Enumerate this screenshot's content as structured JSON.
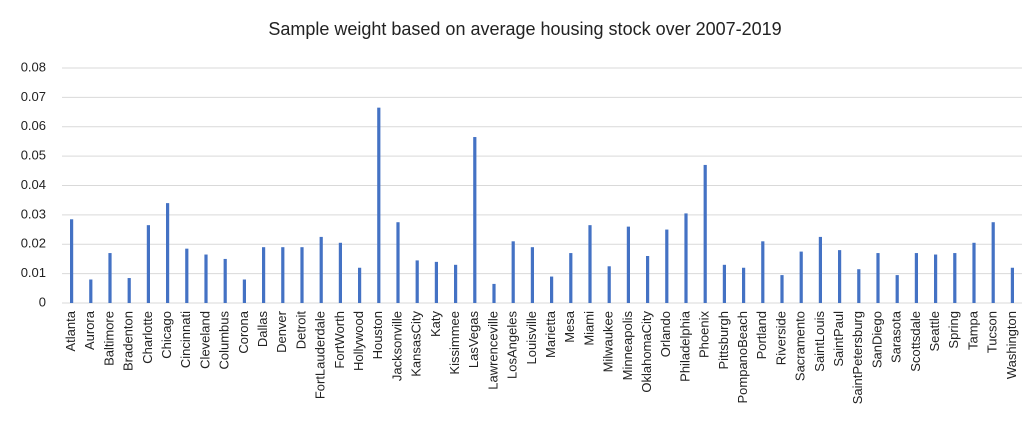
{
  "chart_data": {
    "type": "bar",
    "title": "Sample weight based on average housing stock over 2007-2019",
    "categories": [
      "Atlanta",
      "Aurora",
      "Baltimore",
      "Bradenton",
      "Charlotte",
      "Chicago",
      "Cincinnati",
      "Cleveland",
      "Columbus",
      "Corona",
      "Dallas",
      "Denver",
      "Detroit",
      "FortLauderdale",
      "FortWorth",
      "Hollywood",
      "Houston",
      "Jacksonville",
      "KansasCity",
      "Katy",
      "Kissimmee",
      "LasVegas",
      "Lawrenceville",
      "LosAngeles",
      "Louisville",
      "Marietta",
      "Mesa",
      "Miami",
      "Milwaukee",
      "Minneapolis",
      "OklahomaCity",
      "Orlando",
      "Philadelphia",
      "Phoenix",
      "Pittsburgh",
      "PompanoBeach",
      "Portland",
      "Riverside",
      "Sacramento",
      "SaintLouis",
      "SaintPaul",
      "SaintPetersburg",
      "SanDiego",
      "Sarasota",
      "Scottsdale",
      "Seattle",
      "Spring",
      "Tampa",
      "Tucson",
      "Washington"
    ],
    "values": [
      0.0285,
      0.008,
      0.017,
      0.0085,
      0.0265,
      0.034,
      0.0185,
      0.0165,
      0.015,
      0.008,
      0.019,
      0.019,
      0.019,
      0.0225,
      0.0205,
      0.012,
      0.0665,
      0.0275,
      0.0145,
      0.014,
      0.013,
      0.0565,
      0.0065,
      0.021,
      0.019,
      0.009,
      0.017,
      0.0265,
      0.0125,
      0.026,
      0.016,
      0.025,
      0.0305,
      0.047,
      0.013,
      0.012,
      0.021,
      0.0095,
      0.0175,
      0.0225,
      0.018,
      0.0115,
      0.017,
      0.0095,
      0.017,
      0.0165,
      0.017,
      0.0205,
      0.0275,
      0.012
    ],
    "color": "#4472c4",
    "ylim": [
      0,
      0.08
    ],
    "yticks": [
      0,
      0.01,
      0.02,
      0.03,
      0.04,
      0.05,
      0.06,
      0.07,
      0.08
    ],
    "grid": true
  }
}
